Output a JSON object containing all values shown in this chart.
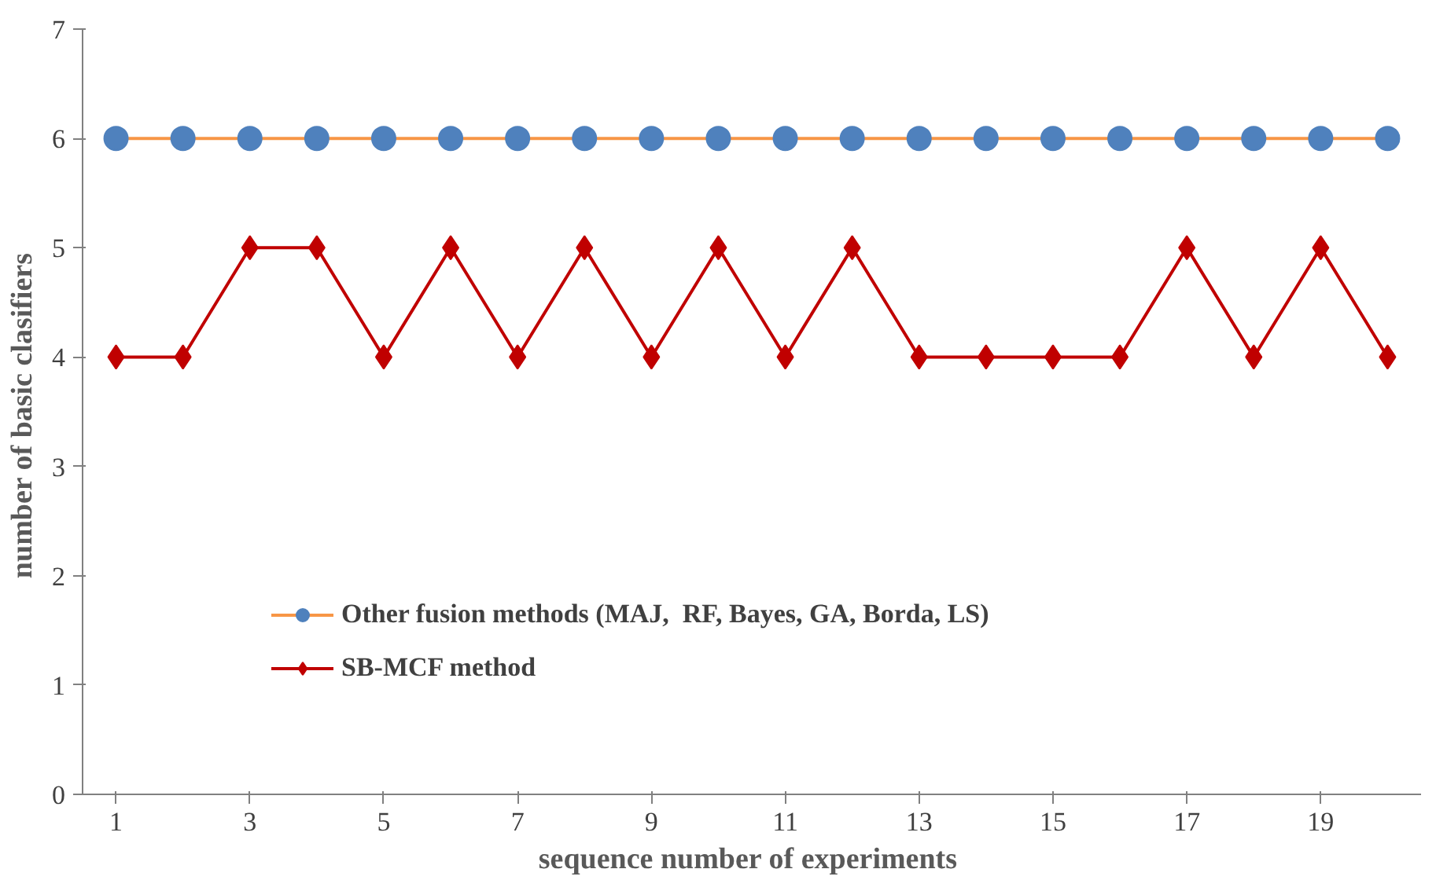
{
  "chart_data": {
    "type": "line",
    "xlabel": "sequence number  of experiments",
    "ylabel": "number of  basic clasifiers",
    "x": [
      1,
      2,
      3,
      4,
      5,
      6,
      7,
      8,
      9,
      10,
      11,
      12,
      13,
      14,
      15,
      16,
      17,
      18,
      19,
      20
    ],
    "xlim": [
      0.5,
      20.5
    ],
    "xticks": [
      1,
      3,
      5,
      7,
      9,
      11,
      13,
      15,
      17,
      19
    ],
    "ylim": [
      0,
      7
    ],
    "yticks": [
      0,
      1,
      2,
      3,
      4,
      5,
      6,
      7
    ],
    "grid": false,
    "legend": "bottom left",
    "series": [
      {
        "name": "Other fusion methods (MAJ,  RF, Bayes, GA, Borda, LS)",
        "color": "#f79646",
        "colors": [
          "#4f81bd",
          "#4f81bd",
          "#4f81bd",
          "#4f81bd",
          "#4f81bd",
          "#4f81bd",
          "#4f81bd",
          "#4f81bd",
          "#4f81bd",
          "#4f81bd",
          "#4f81bd",
          "#4f81bd",
          "#4f81bd",
          "#4f81bd",
          "#4f81bd",
          "#4f81bd",
          "#4f81bd",
          "#4f81bd",
          "#4f81bd",
          "#4f81bd"
        ],
        "marker": "circle",
        "values": [
          6,
          6,
          6,
          6,
          6,
          6,
          6,
          6,
          6,
          6,
          6,
          6,
          6,
          6,
          6,
          6,
          6,
          6,
          6,
          6
        ]
      },
      {
        "name": "SB-MCF method",
        "color": "#c00000",
        "marker": "diamond",
        "values": [
          4,
          4,
          5,
          5,
          4,
          5,
          4,
          5,
          4,
          5,
          4,
          5,
          4,
          4,
          4,
          4,
          5,
          4,
          5,
          4
        ]
      }
    ]
  }
}
